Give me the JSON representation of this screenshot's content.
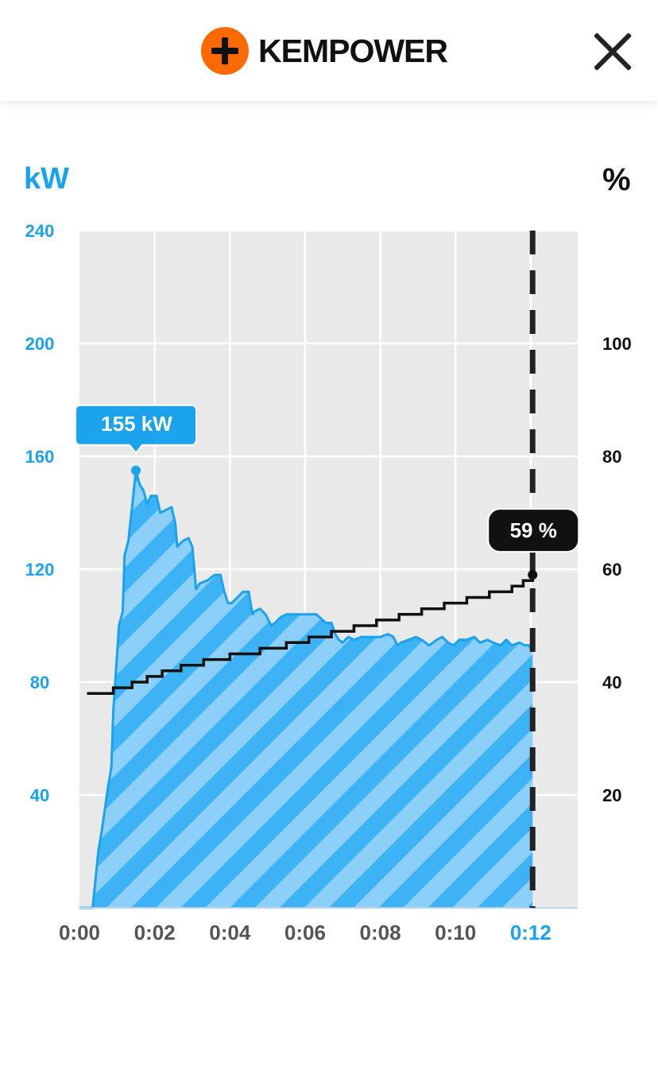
{
  "header": {
    "brand_name": "KEMPOWER",
    "logo_icon": "plus-circle-icon",
    "close_icon": "close-icon"
  },
  "colors": {
    "power": "#1aa3ec",
    "power_fill_light": "#8ccff9",
    "power_fill_dark": "#3db2f5",
    "soc": "#111111",
    "brand_orange": "#ff6a00",
    "plot_bg": "#e9e9e9"
  },
  "chart_data": {
    "type": "area",
    "left_axis_label": "kW",
    "right_axis_label": "%",
    "xlim": [
      0,
      13.25
    ],
    "ylim_left": [
      0,
      240
    ],
    "ylim_right": [
      0,
      120
    ],
    "x_ticks": [
      {
        "value": 0,
        "label": "0:00"
      },
      {
        "value": 2,
        "label": "0:02"
      },
      {
        "value": 4,
        "label": "0:04"
      },
      {
        "value": 6,
        "label": "0:06"
      },
      {
        "value": 8,
        "label": "0:08"
      },
      {
        "value": 10,
        "label": "0:10"
      },
      {
        "value": 12,
        "label": "0:12"
      }
    ],
    "y_ticks_left": [
      {
        "value": 40,
        "label": "40"
      },
      {
        "value": 80,
        "label": "80"
      },
      {
        "value": 120,
        "label": "120"
      },
      {
        "value": 160,
        "label": "160"
      },
      {
        "value": 200,
        "label": "200"
      },
      {
        "value": 240,
        "label": "240"
      }
    ],
    "y_ticks_right": [
      {
        "value": 20,
        "label": "20"
      },
      {
        "value": 40,
        "label": "40"
      },
      {
        "value": 60,
        "label": "60"
      },
      {
        "value": 80,
        "label": "80"
      },
      {
        "value": 100,
        "label": "100"
      }
    ],
    "current_time": 12.05,
    "grid": true,
    "series": [
      {
        "type": "area",
        "axis": "left",
        "x": [
          0,
          0.35,
          0.5,
          0.6,
          0.75,
          0.85,
          0.9,
          0.95,
          1.05,
          1.15,
          1.2,
          1.3,
          1.4,
          1.5,
          1.6,
          1.7,
          1.8,
          1.9,
          2.05,
          2.15,
          2.3,
          2.45,
          2.55,
          2.6,
          2.75,
          2.9,
          3.0,
          3.1,
          3.2,
          3.4,
          3.6,
          3.75,
          3.85,
          3.95,
          4.05,
          4.2,
          4.35,
          4.5,
          4.6,
          4.65,
          4.8,
          4.95,
          5.1,
          5.2,
          5.35,
          5.5,
          5.75,
          6.0,
          6.3,
          6.55,
          6.7,
          6.8,
          6.9,
          7.0,
          7.15,
          7.3,
          7.5,
          7.75,
          8.0,
          8.2,
          8.35,
          8.45,
          8.55,
          8.75,
          8.95,
          9.1,
          9.3,
          9.5,
          9.65,
          9.8,
          9.95,
          10.1,
          10.3,
          10.5,
          10.65,
          10.85,
          11.0,
          11.2,
          11.35,
          11.5,
          11.7,
          11.85,
          11.95,
          12.05
        ],
        "values": [
          0,
          0,
          20,
          28,
          42,
          50,
          70,
          80,
          100,
          105,
          125,
          130,
          142,
          155,
          150,
          148,
          143,
          146,
          146,
          140,
          141,
          142,
          136,
          128,
          130,
          131,
          128,
          113,
          115,
          116,
          118,
          118,
          112,
          108,
          108,
          110,
          112,
          112,
          104,
          105,
          106,
          104,
          100,
          101,
          103,
          104,
          104,
          104,
          104,
          101,
          101,
          97,
          95,
          94,
          96,
          95,
          96,
          96,
          96,
          97,
          96,
          93,
          94,
          95,
          96,
          95,
          93,
          95,
          96,
          94,
          93,
          95,
          95,
          96,
          94,
          95,
          94,
          93,
          95,
          93,
          94,
          93,
          93,
          91
        ]
      },
      {
        "type": "step",
        "axis": "right",
        "x": [
          0.2,
          0.5,
          0.8,
          0.9,
          1.0,
          1.2,
          1.4,
          1.6,
          1.8,
          2.0,
          2.2,
          2.5,
          2.7,
          3.0,
          3.3,
          3.6,
          4.0,
          4.4,
          4.8,
          5.2,
          5.5,
          5.8,
          6.1,
          6.4,
          6.7,
          7.0,
          7.3,
          7.6,
          7.9,
          8.2,
          8.5,
          8.8,
          9.1,
          9.4,
          9.7,
          10.0,
          10.3,
          10.6,
          10.9,
          11.2,
          11.5,
          11.8,
          12.05
        ],
        "values": [
          38,
          38,
          38,
          39,
          39,
          39,
          40,
          40,
          41,
          41,
          42,
          42,
          43,
          43,
          44,
          44,
          45,
          45,
          46,
          46,
          47,
          47,
          48,
          48,
          49,
          49,
          50,
          50,
          51,
          51,
          52,
          52,
          53,
          53,
          54,
          54,
          55,
          55,
          56,
          56,
          57,
          58,
          59
        ]
      }
    ],
    "annotations": [
      {
        "text": "155 kW",
        "x": 1.5,
        "value": 155,
        "axis": "left"
      },
      {
        "text": "59 %",
        "x": 12.05,
        "value": 59,
        "axis": "right"
      }
    ]
  }
}
